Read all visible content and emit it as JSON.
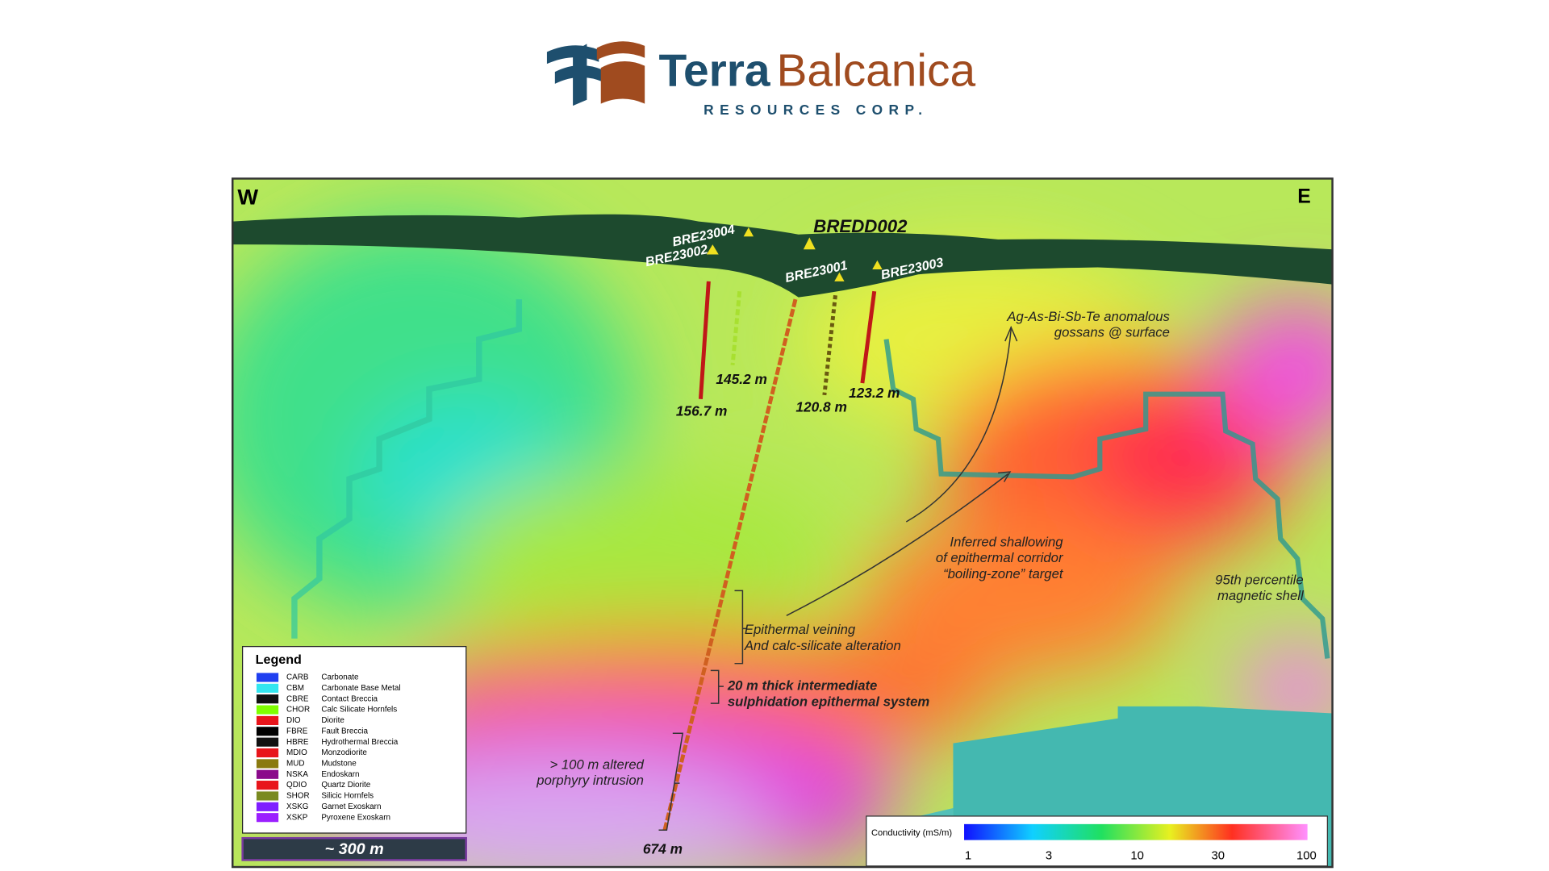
{
  "logo": {
    "name_first": "Terra",
    "name_second": "Balcanica",
    "subtitle": "RESOURCES CORP."
  },
  "section": {
    "west": "W",
    "east": "E"
  },
  "drillholes": [
    "BRE23004",
    "BRE23002",
    "BREDD002",
    "BRE23001",
    "BRE23003"
  ],
  "depths": [
    "145.2 m",
    "156.7 m",
    "120.8 m",
    "123.2 m",
    "674 m"
  ],
  "annotations": [
    {
      "lines": [
        "Ag-As-Bi-Sb-Te anomalous",
        "gossans @ surface"
      ]
    },
    {
      "lines": [
        "Inferred shallowing",
        "of epithermal corridor",
        "“boiling-zone” target"
      ]
    },
    {
      "lines": [
        "95th percentile",
        "magnetic shell"
      ]
    },
    {
      "lines": [
        "Epithermal veining",
        "And calc-silicate alteration"
      ]
    },
    {
      "lines": [
        "20 m thick intermediate",
        "sulphidation epithermal system"
      ]
    },
    {
      "lines": [
        "> 100 m altered",
        "porphyry intrusion"
      ]
    }
  ],
  "legend": {
    "title": "Legend",
    "items": [
      {
        "code": "CARB",
        "name": "Carbonate",
        "color": "#1f3ff0"
      },
      {
        "code": "CBM",
        "name": "Carbonate Base Metal",
        "color": "#33e6f0"
      },
      {
        "code": "CBRE",
        "name": "Contact Breccia",
        "color": "#111111"
      },
      {
        "code": "CHOR",
        "name": "Calc Silicate Hornfels",
        "color": "#7fff00"
      },
      {
        "code": "DIO",
        "name": "Diorite",
        "color": "#e8151b"
      },
      {
        "code": "FBRE",
        "name": "Fault Breccia",
        "color": "#000000"
      },
      {
        "code": "HBRE",
        "name": "Hydrothermal Breccia",
        "color": "#111111"
      },
      {
        "code": "MDIO",
        "name": "Monzodiorite",
        "color": "#e8151b"
      },
      {
        "code": "MUD",
        "name": "Mudstone",
        "color": "#8a7a10"
      },
      {
        "code": "NSKA",
        "name": "Endoskarn",
        "color": "#8b0a8b"
      },
      {
        "code": "QDIO",
        "name": "Quartz Diorite",
        "color": "#e8151b"
      },
      {
        "code": "SHOR",
        "name": "Silicic Hornfels",
        "color": "#7a8a20"
      },
      {
        "code": "XSKG",
        "name": "Garnet Exoskarn",
        "color": "#7f1fff"
      },
      {
        "code": "XSKP",
        "name": "Pyroxene Exoskarn",
        "color": "#9b1fff"
      }
    ]
  },
  "scale_bar": "~ 300 m",
  "colorbar": {
    "label": "Conductivity (mS/m)",
    "ticks": [
      1,
      3,
      10,
      30,
      100
    ]
  }
}
